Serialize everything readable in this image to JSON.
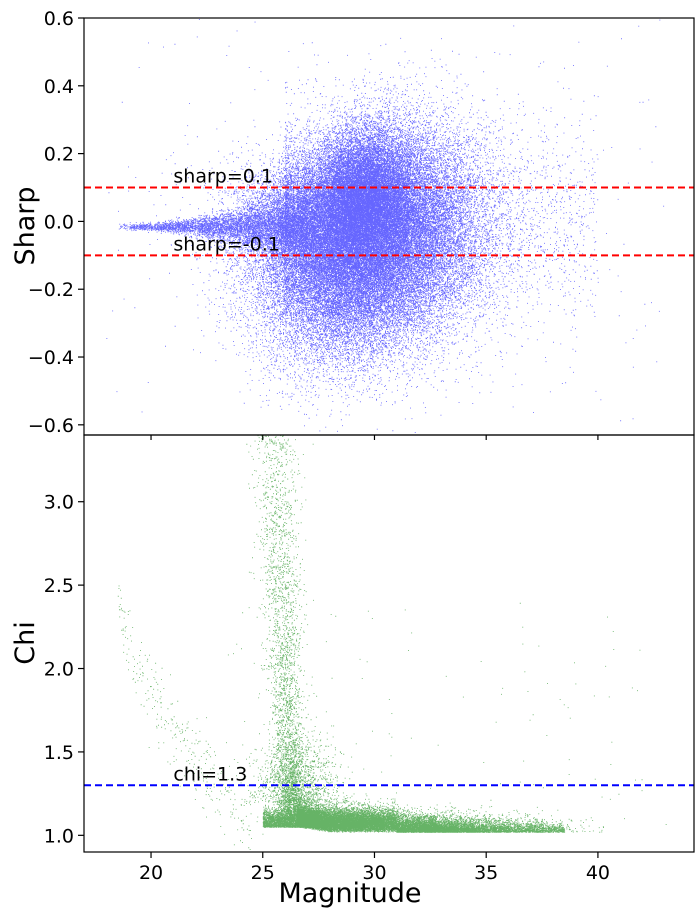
{
  "colors": {
    "sharp_points": "#0000ff",
    "chi_points": "#008000",
    "sharp_lines": "#ff0000",
    "chi_line": "#0000ff"
  },
  "chart_data": [
    {
      "type": "scatter",
      "panel": "top",
      "ylabel": "Sharp",
      "xlim": [
        17,
        44.3
      ],
      "ylim": [
        -0.63,
        0.6
      ],
      "yticks": [
        -0.6,
        -0.4,
        -0.2,
        0.0,
        0.2,
        0.4,
        0.6
      ],
      "ytick_labels": [
        "−0.6",
        "−0.4",
        "−0.2",
        "0.0",
        "0.2",
        "0.4",
        "0.6"
      ],
      "hlines": [
        {
          "y": 0.1,
          "label": "sharp=0.1",
          "label_x": 21,
          "color": "#ff0000",
          "style": "dashed"
        },
        {
          "y": -0.1,
          "label": "sharp=-0.1",
          "label_x": 21,
          "color": "#ff0000",
          "style": "dashed"
        }
      ],
      "distribution": {
        "main_cloud": {
          "x_center": 29.8,
          "x_spread": 2.4,
          "y_center": -0.02,
          "y_spread": 0.15
        },
        "narrow_sequence": {
          "x_range": [
            18.5,
            27
          ],
          "y_center": -0.015,
          "y_spread_at_start": 0.004,
          "y_spread_at_end": 0.06
        },
        "wide_faint_tail": {
          "x_range": [
            26,
            40
          ],
          "y_center": 0.0,
          "y_spread": 0.2
        }
      },
      "approx_point_count": 90000
    },
    {
      "type": "scatter",
      "panel": "bottom",
      "xlabel": "Magnitude",
      "ylabel": "Chi",
      "xlim": [
        17,
        44.3
      ],
      "ylim": [
        0.9,
        3.4
      ],
      "xticks": [
        20,
        25,
        30,
        35,
        40
      ],
      "xtick_labels": [
        "20",
        "25",
        "30",
        "35",
        "40"
      ],
      "yticks": [
        1.0,
        1.5,
        2.0,
        2.5,
        3.0
      ],
      "ytick_labels": [
        "1.0",
        "1.5",
        "2.0",
        "2.5",
        "3.0"
      ],
      "hlines": [
        {
          "y": 1.3,
          "label": "chi=1.3",
          "label_x": 21,
          "color": "#0000ff",
          "style": "dashed"
        }
      ],
      "distribution": {
        "main_band": {
          "x_range": [
            24.5,
            37.5
          ],
          "y_floor": 1.02,
          "y_spread": 0.05
        },
        "bright_plume": {
          "x_center": 26.2,
          "y_range": [
            1.1,
            3.4
          ],
          "x_spread": 0.5
        },
        "bright_sequence": {
          "x_range": [
            18.5,
            24.5
          ],
          "y_at_start": 2.6,
          "y_at_end": 1.1
        }
      },
      "approx_point_count": 30000
    }
  ]
}
